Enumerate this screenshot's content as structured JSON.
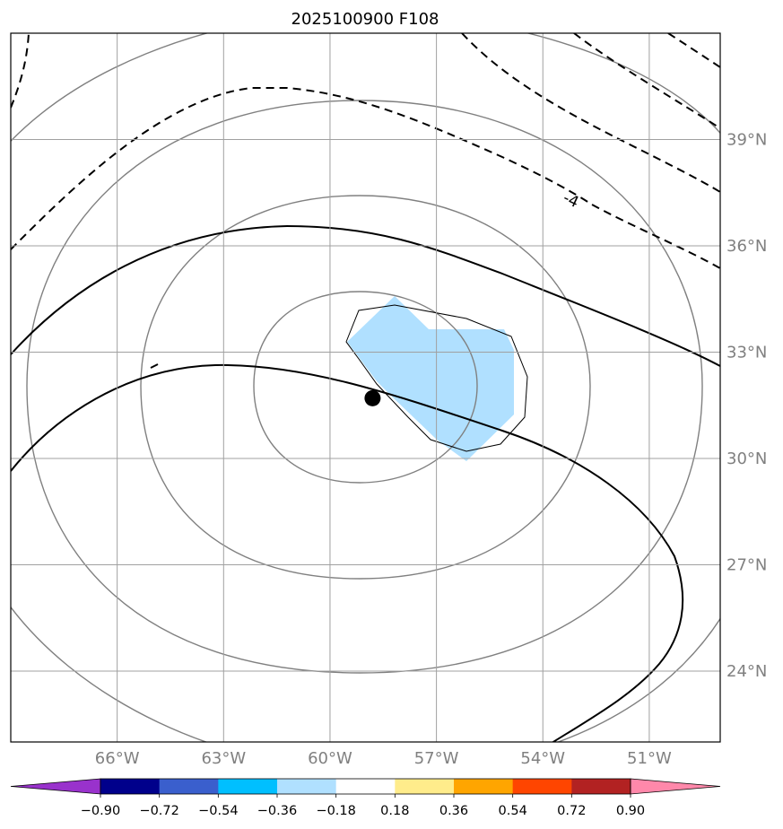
{
  "chart_data": {
    "type": "map-contour",
    "title": "2025100900 F108",
    "projection": "lat-lon",
    "xlim": [
      -69.0,
      -49.0
    ],
    "ylim": [
      22.0,
      42.0
    ],
    "x_ticks": [
      {
        "value": -66,
        "label": "66°W"
      },
      {
        "value": -63,
        "label": "63°W"
      },
      {
        "value": -60,
        "label": "60°W"
      },
      {
        "value": -57,
        "label": "57°W"
      },
      {
        "value": -54,
        "label": "54°W"
      },
      {
        "value": -51,
        "label": "51°W"
      }
    ],
    "y_ticks": [
      {
        "value": 24,
        "label": "24°N"
      },
      {
        "value": 27,
        "label": "27°N"
      },
      {
        "value": 30,
        "label": "30°N"
      },
      {
        "value": 33,
        "label": "33°N"
      },
      {
        "value": 36,
        "label": "36°N"
      },
      {
        "value": 39,
        "label": "39°N"
      }
    ],
    "gridlines": true,
    "storm_center": {
      "lon": -58.8,
      "lat": 31.7
    },
    "contour_label": "-4",
    "colorbar": {
      "extend": "both",
      "levels": [
        "−0.90",
        "−0.72",
        "−0.54",
        "−0.36",
        "−0.18",
        "0.18",
        "0.36",
        "0.54",
        "0.72",
        "0.90"
      ],
      "colors": [
        "#9932CC",
        "#00008B",
        "#3A5FCD",
        "#00BFFF",
        "#B0E0FF",
        "#FFFFFF",
        "#FFEC8B",
        "#FFA500",
        "#FF4500",
        "#B22222",
        "#FF88AA"
      ]
    },
    "shaded_region_color": "#B0E0FF",
    "grey_contour_color": "#808080"
  }
}
